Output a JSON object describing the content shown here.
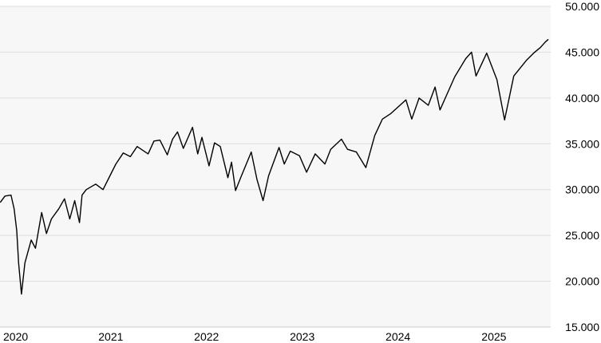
{
  "chart_data": {
    "type": "line",
    "title": "",
    "xlabel": "",
    "ylabel": "",
    "x_ticks": [
      "2020",
      "2021",
      "2022",
      "2023",
      "2024",
      "2025"
    ],
    "y_ticks": [
      "15.000",
      "20.000",
      "25.000",
      "30.000",
      "35.000",
      "40.000",
      "45.000",
      "50.000"
    ],
    "ylim": [
      15000,
      50000
    ],
    "xlim": [
      "2020-01-01",
      "2025-10-01"
    ],
    "grid": true,
    "y_axis_side": "right",
    "colors": {
      "line": "#000000",
      "plot_background": "#f7f7f7",
      "grid": "#dddddd"
    },
    "series": [
      {
        "values": [
          [
            "2020-01-02",
            28600
          ],
          [
            "2020-01-20",
            29300
          ],
          [
            "2020-02-12",
            29400
          ],
          [
            "2020-02-24",
            27900
          ],
          [
            "2020-03-05",
            25500
          ],
          [
            "2020-03-12",
            22000
          ],
          [
            "2020-03-23",
            18600
          ],
          [
            "2020-04-05",
            22000
          ],
          [
            "2020-04-29",
            24500
          ],
          [
            "2020-05-15",
            23600
          ],
          [
            "2020-06-08",
            27500
          ],
          [
            "2020-06-26",
            25200
          ],
          [
            "2020-07-15",
            26800
          ],
          [
            "2020-08-12",
            27900
          ],
          [
            "2020-09-03",
            29000
          ],
          [
            "2020-09-23",
            26800
          ],
          [
            "2020-10-12",
            28800
          ],
          [
            "2020-10-30",
            26400
          ],
          [
            "2020-11-09",
            29400
          ],
          [
            "2020-11-25",
            30000
          ],
          [
            "2020-12-31",
            30600
          ],
          [
            "2021-01-28",
            30000
          ],
          [
            "2021-02-23",
            31500
          ],
          [
            "2021-03-18",
            32800
          ],
          [
            "2021-04-15",
            34000
          ],
          [
            "2021-05-12",
            33600
          ],
          [
            "2021-06-07",
            34700
          ],
          [
            "2021-06-28",
            34300
          ],
          [
            "2021-07-19",
            33900
          ],
          [
            "2021-08-10",
            35300
          ],
          [
            "2021-09-02",
            35400
          ],
          [
            "2021-09-30",
            33800
          ],
          [
            "2021-10-20",
            35500
          ],
          [
            "2021-11-08",
            36300
          ],
          [
            "2021-11-30",
            34500
          ],
          [
            "2021-12-29",
            36400
          ],
          [
            "2022-01-04",
            36800
          ],
          [
            "2022-01-24",
            33900
          ],
          [
            "2022-02-09",
            35700
          ],
          [
            "2022-03-08",
            32600
          ],
          [
            "2022-03-29",
            35100
          ],
          [
            "2022-04-20",
            34700
          ],
          [
            "2022-05-19",
            31300
          ],
          [
            "2022-06-02",
            33000
          ],
          [
            "2022-06-17",
            29900
          ],
          [
            "2022-07-08",
            31400
          ],
          [
            "2022-08-16",
            34100
          ],
          [
            "2022-09-07",
            31100
          ],
          [
            "2022-09-30",
            28800
          ],
          [
            "2022-10-21",
            31500
          ],
          [
            "2022-11-30",
            34600
          ],
          [
            "2022-12-20",
            32800
          ],
          [
            "2023-01-12",
            34200
          ],
          [
            "2023-02-16",
            33700
          ],
          [
            "2023-03-15",
            31900
          ],
          [
            "2023-04-17",
            33900
          ],
          [
            "2023-05-24",
            32800
          ],
          [
            "2023-06-15",
            34400
          ],
          [
            "2023-07-26",
            35500
          ],
          [
            "2023-08-18",
            34400
          ],
          [
            "2023-09-21",
            34100
          ],
          [
            "2023-10-27",
            32400
          ],
          [
            "2023-11-30",
            35900
          ],
          [
            "2023-12-29",
            37700
          ],
          [
            "2024-01-30",
            38300
          ],
          [
            "2024-03-28",
            39800
          ],
          [
            "2024-04-19",
            37700
          ],
          [
            "2024-05-17",
            40000
          ],
          [
            "2024-06-21",
            39200
          ],
          [
            "2024-07-17",
            41200
          ],
          [
            "2024-08-05",
            38700
          ],
          [
            "2024-09-30",
            42300
          ],
          [
            "2024-11-11",
            44300
          ],
          [
            "2024-12-03",
            45000
          ],
          [
            "2024-12-20",
            42400
          ],
          [
            "2025-01-30",
            44900
          ],
          [
            "2025-03-10",
            42000
          ],
          [
            "2025-04-08",
            37600
          ],
          [
            "2025-05-13",
            42400
          ],
          [
            "2025-06-30",
            44100
          ],
          [
            "2025-07-28",
            44900
          ],
          [
            "2025-08-22",
            45500
          ],
          [
            "2025-09-10",
            46100
          ],
          [
            "2025-09-22",
            46400
          ]
        ]
      }
    ]
  }
}
